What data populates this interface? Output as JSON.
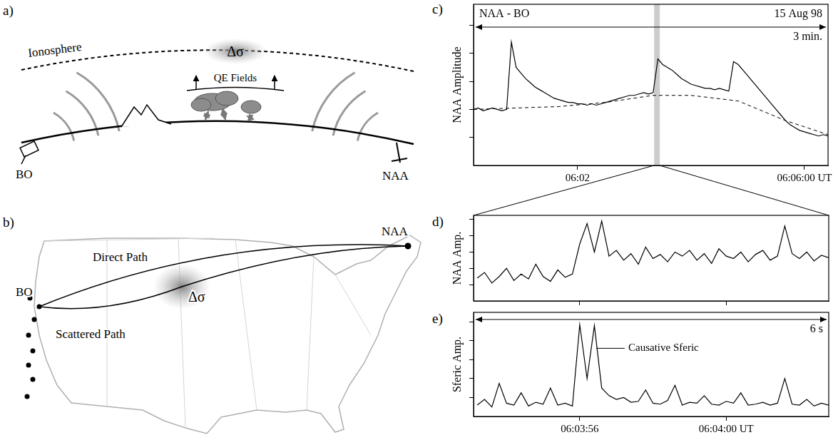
{
  "diagram": {
    "a": {
      "label": "a)",
      "ionosphere": "Ionosphere",
      "fields": "QE Fields",
      "disturbance": "Δσ",
      "receiver": "BO",
      "transmitter": "NAA"
    },
    "b": {
      "label": "b)",
      "receiver": "BO",
      "transmitter": "NAA",
      "direct": "Direct Path",
      "scattered": "Scattered Path",
      "disturbance": "Δσ"
    }
  },
  "chart_data": [
    {
      "label": "c)",
      "type": "line",
      "title": "NAA - BO",
      "subtitle": "15 Aug 98",
      "span_label": "3 min.",
      "y_label": "NAA Amplitude",
      "grid": false,
      "tick_labels": "x",
      "xlim": [
        10,
        385
      ],
      "xticks": [
        {
          "value": 120,
          "label": "06:02"
        },
        {
          "value": 360,
          "label": "06:06:00 UT"
        }
      ],
      "ylim": [
        0,
        115
      ],
      "yticks": [
        20,
        40,
        60,
        80,
        100
      ],
      "highlight_x": [
        201,
        207
      ],
      "series": [
        {
          "color": "#000000",
          "line_style": "solid",
          "x": [
            10,
            15,
            20,
            25,
            30,
            35,
            40,
            45,
            50,
            55,
            60,
            65,
            70,
            75,
            80,
            85,
            90,
            95,
            100,
            105,
            110,
            115,
            120,
            125,
            130,
            135,
            140,
            145,
            150,
            155,
            160,
            165,
            170,
            175,
            180,
            185,
            190,
            195,
            200,
            205,
            210,
            215,
            220,
            225,
            230,
            235,
            240,
            245,
            250,
            255,
            260,
            265,
            270,
            275,
            280,
            285,
            290,
            295,
            300,
            305,
            310,
            315,
            320,
            325,
            330,
            335,
            340,
            345,
            350,
            355,
            360,
            365,
            370,
            375,
            380,
            385
          ],
          "values": [
            40,
            41,
            39,
            40,
            41,
            40,
            39,
            40,
            88,
            70,
            66,
            62,
            59,
            56,
            54,
            52,
            50,
            48,
            47,
            46,
            45,
            45,
            44,
            44,
            43,
            44,
            43,
            44,
            45,
            46,
            47,
            48,
            49,
            50,
            50,
            51,
            52,
            51,
            52,
            76,
            72,
            70,
            68,
            65,
            62,
            60,
            58,
            57,
            56,
            55,
            55,
            54,
            55,
            54,
            53,
            74,
            72,
            68,
            64,
            60,
            56,
            52,
            48,
            44,
            40,
            36,
            32,
            29,
            27,
            25,
            24,
            23,
            22,
            21,
            22,
            21
          ]
        },
        {
          "color": "#000000",
          "line_style": "dashed",
          "x": [
            10,
            100,
            150,
            200,
            240,
            290,
            340,
            385
          ],
          "values": [
            40,
            42,
            45,
            50,
            50,
            46,
            32,
            22
          ]
        }
      ]
    },
    {
      "label": "d)",
      "type": "line",
      "y_label": "NAA Amp.",
      "grid": false,
      "tick_labels": false,
      "xlim": [
        53.1,
        62.8
      ],
      "xticks": [
        56,
        60
      ],
      "ylim": [
        0,
        105
      ],
      "yticks": [
        20,
        40,
        60,
        80,
        100
      ],
      "color": "#000000",
      "line_style": "solid",
      "x": [
        53.2,
        53.4,
        53.6,
        53.8,
        54,
        54.2,
        54.4,
        54.6,
        54.8,
        55,
        55.2,
        55.4,
        55.6,
        55.8,
        56,
        56.2,
        56.4,
        56.6,
        56.8,
        57,
        57.2,
        57.4,
        57.6,
        57.8,
        58,
        58.2,
        58.4,
        58.6,
        58.8,
        59,
        59.2,
        59.4,
        59.6,
        59.8,
        60,
        60.2,
        60.4,
        60.6,
        60.8,
        61,
        61.2,
        61.4,
        61.6,
        61.8,
        62,
        62.2,
        62.4,
        62.6,
        62.8
      ],
      "values": [
        28,
        35,
        22,
        30,
        40,
        25,
        33,
        27,
        45,
        30,
        24,
        38,
        29,
        33,
        70,
        95,
        60,
        98,
        55,
        62,
        50,
        58,
        45,
        66,
        52,
        57,
        48,
        60,
        55,
        62,
        50,
        58,
        46,
        64,
        55,
        52,
        60,
        48,
        57,
        62,
        50,
        55,
        92,
        58,
        52,
        60,
        49,
        56,
        53
      ]
    },
    {
      "label": "e)",
      "type": "line",
      "y_label": "Sferic Amp.",
      "span_label": "6 s",
      "grid": false,
      "tick_labels": "x",
      "xlim": [
        53.1,
        62.8
      ],
      "xticks": [
        {
          "value": 56,
          "label": "06:03:56"
        },
        {
          "value": 60,
          "label": "06:04:00 UT"
        }
      ],
      "ylim": [
        0,
        110
      ],
      "yticks": [
        20,
        40,
        60,
        80,
        100
      ],
      "color": "#000000",
      "line_style": "solid",
      "annotation": {
        "text": "Causative Sferic",
        "x": 56.45,
        "y": 72
      },
      "x": [
        53.2,
        53.4,
        53.6,
        53.8,
        54,
        54.2,
        54.4,
        54.6,
        54.8,
        55,
        55.2,
        55.4,
        55.6,
        55.8,
        56,
        56.2,
        56.4,
        56.6,
        56.8,
        57,
        57.2,
        57.4,
        57.6,
        57.8,
        58,
        58.2,
        58.4,
        58.6,
        58.8,
        59,
        59.2,
        59.4,
        59.6,
        59.8,
        60,
        60.2,
        60.4,
        60.6,
        60.8,
        61,
        61.2,
        61.4,
        61.6,
        61.8,
        62,
        62.2,
        62.4,
        62.6,
        62.8
      ],
      "values": [
        12,
        18,
        10,
        35,
        14,
        12,
        25,
        11,
        15,
        13,
        30,
        12,
        14,
        11,
        97,
        40,
        96,
        30,
        22,
        18,
        20,
        15,
        16,
        28,
        14,
        13,
        17,
        33,
        12,
        15,
        14,
        22,
        13,
        12,
        16,
        14,
        25,
        12,
        13,
        15,
        12,
        14,
        40,
        13,
        12,
        18,
        11,
        14,
        12
      ]
    }
  ]
}
